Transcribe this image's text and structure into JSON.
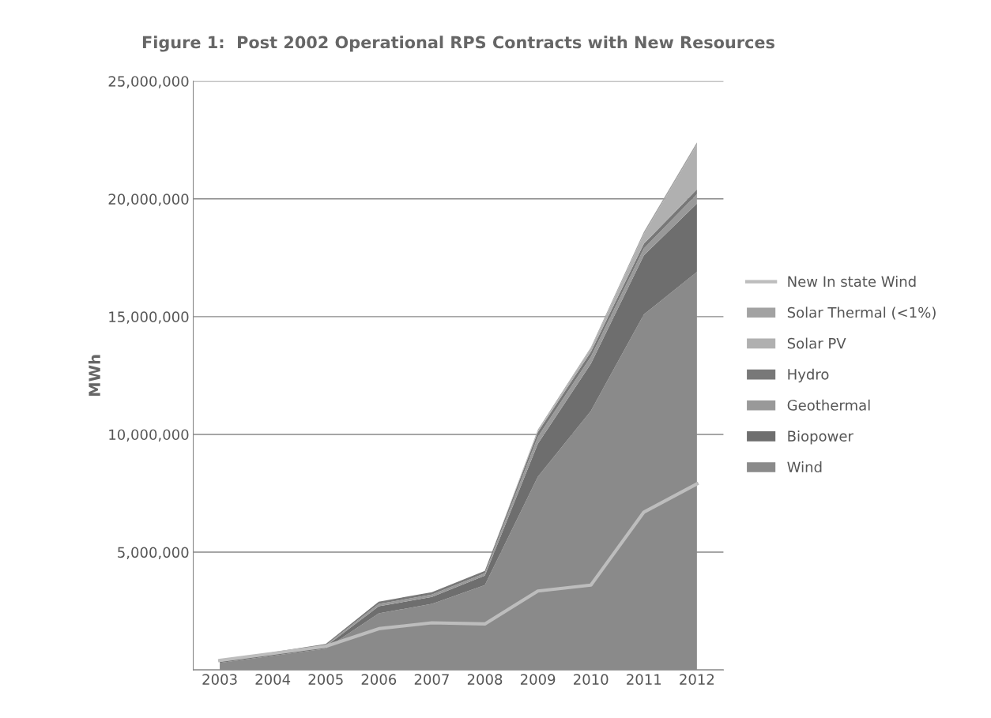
{
  "chart_data": {
    "type": "area",
    "stacked": true,
    "title": "Figure 1:  Post 2002 Operational RPS Contracts with New Resources",
    "ylabel": "MWh",
    "categories": [
      "2003",
      "2004",
      "2005",
      "2006",
      "2007",
      "2008",
      "2009",
      "2010",
      "2011",
      "2012"
    ],
    "series": [
      {
        "name": "Wind",
        "color": "#8a8a8a",
        "values": [
          300000,
          600000,
          900000,
          2400000,
          2800000,
          3600000,
          8200000,
          11000000,
          15100000,
          16900000
        ]
      },
      {
        "name": "Biopower",
        "color": "#6e6e6e",
        "values": [
          50000,
          80000,
          100000,
          300000,
          300000,
          400000,
          1400000,
          2000000,
          2500000,
          2900000
        ]
      },
      {
        "name": "Geothermal",
        "color": "#999999",
        "values": [
          30000,
          40000,
          50000,
          100000,
          100000,
          100000,
          300000,
          300000,
          300000,
          400000
        ]
      },
      {
        "name": "Hydro",
        "color": "#787878",
        "values": [
          20000,
          30000,
          50000,
          100000,
          100000,
          100000,
          200000,
          200000,
          200000,
          200000
        ]
      },
      {
        "name": "Solar PV",
        "color": "#b0b0b0",
        "values": [
          0,
          0,
          0,
          0,
          0,
          0,
          50000,
          150000,
          400000,
          1900000
        ]
      },
      {
        "name": "Solar Thermal (<1%)",
        "color": "#a2a2a2",
        "values": [
          0,
          0,
          0,
          0,
          0,
          0,
          50000,
          50000,
          100000,
          100000
        ]
      },
      {
        "name": "New In state Wind",
        "type": "line",
        "color": "#bdbdbd",
        "values": [
          400000,
          700000,
          1000000,
          1750000,
          2000000,
          1950000,
          3350000,
          3600000,
          6700000,
          7900000
        ]
      }
    ],
    "ylim": [
      0,
      25000000
    ],
    "yticks": [
      {
        "value": 0,
        "label": null
      },
      {
        "value": 5000000,
        "label": "5,000,000"
      },
      {
        "value": 10000000,
        "label": "10,000,000"
      },
      {
        "value": 15000000,
        "label": "15,000,000"
      },
      {
        "value": 20000000,
        "label": "20,000,000"
      },
      {
        "value": 25000000,
        "label": "25,000,000"
      }
    ],
    "grid": "y",
    "legend": "right"
  }
}
